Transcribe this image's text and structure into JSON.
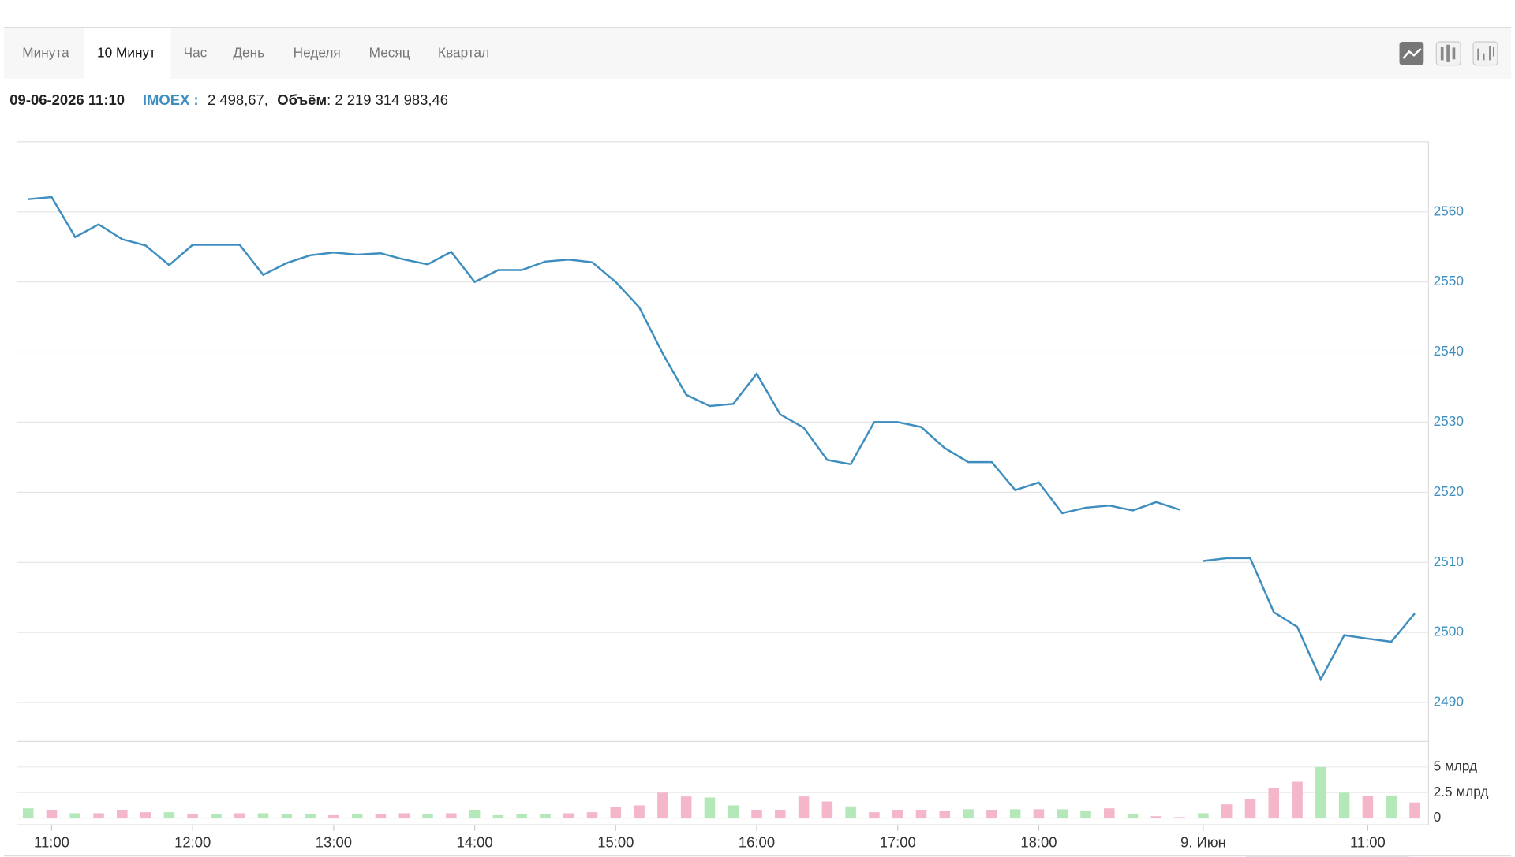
{
  "tabs": [
    "Минута",
    "10 Минут",
    "Час",
    "День",
    "Неделя",
    "Месяц",
    "Квартал"
  ],
  "selected_tab": 1,
  "info": {
    "date": "09-06-2026 11:10",
    "ticker": "IMOEX :",
    "price": "2 498,67,",
    "volume_label": "Объём",
    "volume": ": 2 219 314 983,46"
  },
  "chart_data": [
    {
      "type": "line",
      "color": "#3d8ebf",
      "grid": true,
      "ylim": [
        2485,
        2570
      ],
      "yticks": [
        2490,
        2500,
        2510,
        2520,
        2530,
        2540,
        2550,
        2560
      ],
      "series": [
        {
          "color": "#3d8ebf",
          "values": [
            2561.8,
            2562.1,
            2556.4,
            2558.2,
            2556.1,
            2555.2,
            2552.4,
            2555.3,
            2555.3,
            2555.3,
            2551.0,
            2552.7,
            2553.8,
            2554.2,
            2553.9,
            2554.1,
            2553.2,
            2552.5,
            2554.3,
            2550.0,
            2551.7,
            2551.7,
            2552.9,
            2553.2,
            2552.8,
            2550.0,
            2546.4,
            2539.8,
            2533.9,
            2532.3,
            2532.6,
            2536.9,
            2531.1,
            2529.2,
            2524.6,
            2524.0,
            2530.0,
            2530.0,
            2529.3,
            2526.3,
            2524.3,
            2524.3,
            2520.3,
            2521.4,
            2517.0,
            2517.8,
            2518.1,
            2517.4,
            2518.6,
            2517.5,
            null,
            null,
            null,
            null,
            null,
            null,
            null,
            null,
            null,
            null
          ]
        },
        {
          "color": "#3d8ebf",
          "values": [
            null,
            null,
            null,
            null,
            null,
            null,
            null,
            null,
            null,
            null,
            null,
            null,
            null,
            null,
            null,
            null,
            null,
            null,
            null,
            null,
            null,
            null,
            null,
            null,
            null,
            null,
            null,
            null,
            null,
            null,
            null,
            null,
            null,
            null,
            null,
            null,
            null,
            null,
            null,
            null,
            null,
            null,
            null,
            null,
            null,
            null,
            null,
            null,
            null,
            null,
            2510.2,
            2510.6,
            2510.6,
            2502.9,
            2500.8,
            2493.3,
            2499.6,
            2499.1,
            2498.67,
            2502.7
          ]
        }
      ]
    },
    {
      "type": "bar",
      "categories": [
        null,
        "11:00",
        null,
        null,
        null,
        null,
        null,
        "12:00",
        null,
        null,
        null,
        null,
        null,
        "13:00",
        null,
        null,
        null,
        null,
        null,
        "14:00",
        null,
        null,
        null,
        null,
        null,
        "15:00",
        null,
        null,
        null,
        null,
        null,
        "16:00",
        null,
        null,
        null,
        null,
        null,
        "17:00",
        null,
        null,
        null,
        null,
        null,
        "18:00",
        null,
        null,
        null,
        null,
        null,
        null,
        "9. Июн",
        null,
        null,
        null,
        null,
        null,
        null,
        "11:00",
        null,
        null
      ],
      "ylim": [
        0,
        7.5
      ],
      "yticks": [
        0,
        {
          "value": 2.5,
          "label": "2.5 млрд"
        },
        {
          "value": 5,
          "label": "5 млрд"
        }
      ],
      "values": [
        0.96,
        0.77,
        0.48,
        0.48,
        0.77,
        0.58,
        0.58,
        0.38,
        0.38,
        0.48,
        0.48,
        0.38,
        0.38,
        0.29,
        0.38,
        0.38,
        0.48,
        0.38,
        0.48,
        0.77,
        0.29,
        0.38,
        0.38,
        0.48,
        0.58,
        1.06,
        1.25,
        2.5,
        2.12,
        2.02,
        1.25,
        0.77,
        0.77,
        2.12,
        1.63,
        1.15,
        0.58,
        0.77,
        0.77,
        0.67,
        0.87,
        0.77,
        0.87,
        0.87,
        0.87,
        0.67,
        0.96,
        0.38,
        0.19,
        0.1,
        0.48,
        1.35,
        1.83,
        2.98,
        3.56,
        5.0,
        2.5,
        2.21,
        2.219314983,
        1.54
      ],
      "colors": [
        "#b5e8b8",
        "#f4b6c9",
        "#b5e8b8",
        "#f4b6c9",
        "#f4b6c9",
        "#f4b6c9",
        "#b5e8b8",
        "#f4b6c9",
        "#b5e8b8",
        "#f4b6c9",
        "#b5e8b8",
        "#b5e8b8",
        "#b5e8b8",
        "#f4b6c9",
        "#b5e8b8",
        "#f4b6c9",
        "#f4b6c9",
        "#b5e8b8",
        "#f4b6c9",
        "#b5e8b8",
        "#b5e8b8",
        "#b5e8b8",
        "#b5e8b8",
        "#f4b6c9",
        "#f4b6c9",
        "#f4b6c9",
        "#f4b6c9",
        "#f4b6c9",
        "#f4b6c9",
        "#b5e8b8",
        "#b5e8b8",
        "#f4b6c9",
        "#f4b6c9",
        "#f4b6c9",
        "#f4b6c9",
        "#b5e8b8",
        "#f4b6c9",
        "#f4b6c9",
        "#f4b6c9",
        "#f4b6c9",
        "#b5e8b8",
        "#f4b6c9",
        "#b5e8b8",
        "#f4b6c9",
        "#b5e8b8",
        "#b5e8b8",
        "#f4b6c9",
        "#b5e8b8",
        "#f4b6c9",
        "#f4b6c9",
        "#b5e8b8",
        "#f4b6c9",
        "#f4b6c9",
        "#f4b6c9",
        "#f4b6c9",
        "#b5e8b8",
        "#b5e8b8",
        "#f4b6c9",
        "#b5e8b8",
        "#f4b6c9"
      ]
    }
  ]
}
